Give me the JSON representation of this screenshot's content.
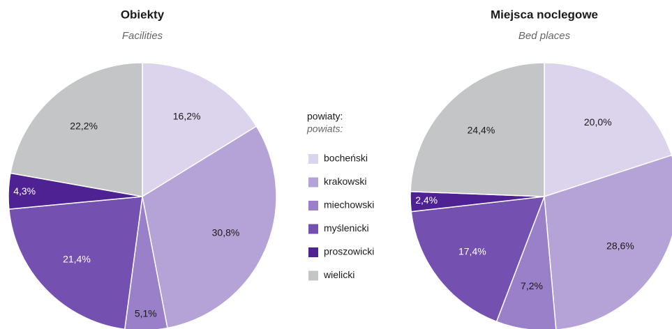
{
  "legend": {
    "title": "powiaty:",
    "subtitle": "powiats:",
    "categories": [
      "bocheński",
      "krakowski",
      "miechowski",
      "myślenicki",
      "proszowicki",
      "wielicki"
    ],
    "colors": [
      "#dcd3ec",
      "#b5a2d6",
      "#9a80c8",
      "#7450b0",
      "#4f2293",
      "#c4c5c6"
    ]
  },
  "chart_data": [
    {
      "type": "pie",
      "title": "Obiekty",
      "subtitle": "Facilities",
      "values": [
        16.2,
        30.8,
        5.1,
        21.4,
        4.3,
        22.2
      ],
      "value_labels": [
        "16,2%",
        "30,8%",
        "5,1%",
        "21,4%",
        "4,3%",
        "22,2%"
      ]
    },
    {
      "type": "pie",
      "title": "Miejsca noclegowe",
      "subtitle": "Bed places",
      "values": [
        20.0,
        28.6,
        7.2,
        17.4,
        2.4,
        24.4
      ],
      "value_labels": [
        "20,0%",
        "28,6%",
        "7,2%",
        "17,4%",
        "2,4%",
        "24,4%"
      ]
    }
  ]
}
